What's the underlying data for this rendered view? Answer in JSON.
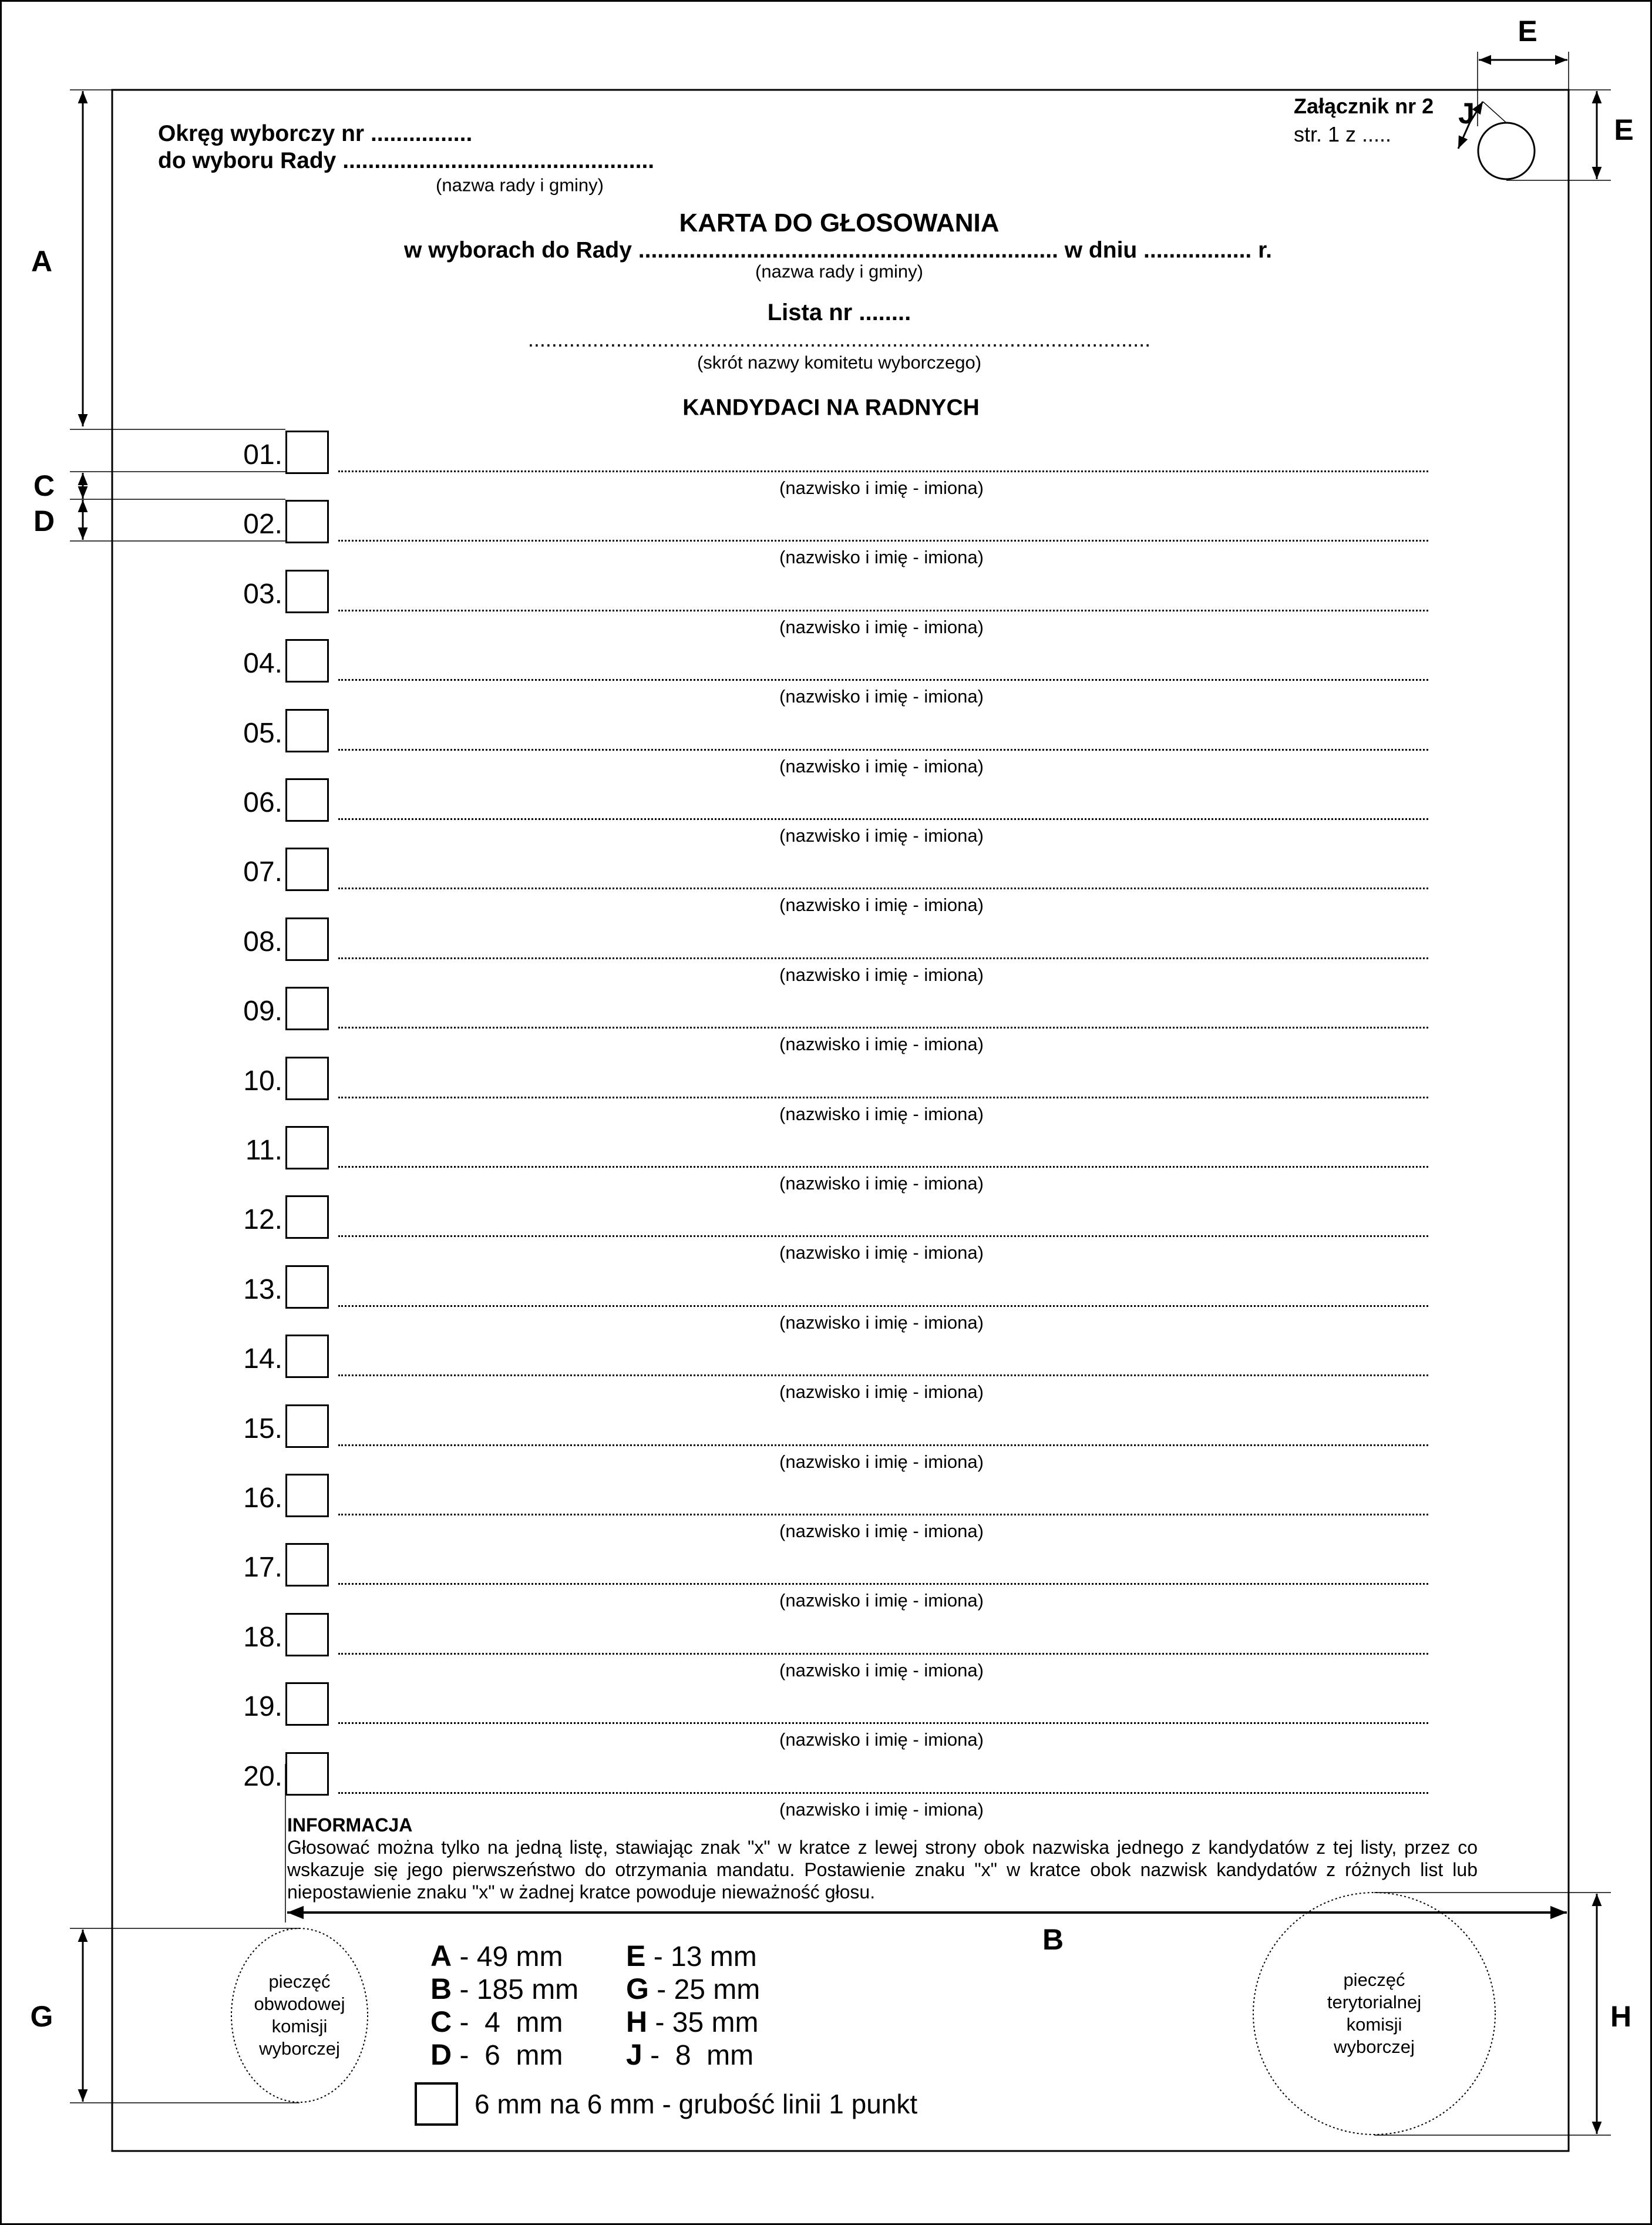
{
  "header": {
    "district": "Okręg wyborczy nr ................",
    "council": "do wyboru Rady .................................................",
    "council_caption": "(nazwa rady i gminy)",
    "attachment": "Załącznik nr 2",
    "page": "str. 1 z ....."
  },
  "title": {
    "main": "KARTA DO GŁOSOWANIA",
    "subtitle": "w wyborach do Rady ..................................................................  w dniu ................. r.",
    "subtitle_caption": "(nazwa rady i gminy)",
    "list": "Lista nr ........",
    "committee_line": "..........................................................................................................",
    "committee_caption": "(skrót nazwy komitetu wyborczego)",
    "candidates_heading": "KANDYDACI NA RADNYCH"
  },
  "candidates": {
    "caption": "(nazwisko i imię - imiona)",
    "numbers": [
      "01.",
      "02.",
      "03.",
      "04.",
      "05.",
      "06.",
      "07.",
      "08.",
      "09.",
      "10.",
      "11.",
      "12.",
      "13.",
      "14.",
      "15.",
      "16.",
      "17.",
      "18.",
      "19.",
      "20."
    ]
  },
  "info": {
    "heading": "INFORMACJA",
    "text": "Głosować można tylko na jedną listę, stawiając znak \"x\" w kratce z lewej strony obok nazwiska  jednego z kandydatów z tej listy, przez co wskazuje się jego pierwszeństwo do otrzymania mandatu. Postawienie znaku \"x\" w kratce obok nazwisk kandydatów z różnych list lub niepostawienie znaku \"x\" w żadnej kratce powoduje nieważność głosu."
  },
  "stamps": {
    "left": [
      "pieczęć",
      "obwodowej",
      "komisji",
      "wyborczej"
    ],
    "right": [
      "pieczęć",
      "terytorialnej",
      "komisji",
      "wyborczej"
    ]
  },
  "dimensions": {
    "labels": {
      "A": "A",
      "B": "B",
      "C": "C",
      "D": "D",
      "E": "E",
      "G": "G",
      "H": "H",
      "J": "J"
    },
    "legend": [
      {
        "key": "A",
        "value": "- 49 mm"
      },
      {
        "key": "B",
        "value": "- 185 mm"
      },
      {
        "key": "C",
        "value": "-  4  mm"
      },
      {
        "key": "D",
        "value": "-  6  mm"
      },
      {
        "key": "E",
        "value": "- 13 mm"
      },
      {
        "key": "G",
        "value": "- 25 mm"
      },
      {
        "key": "H",
        "value": "- 35 mm"
      },
      {
        "key": "J",
        "value": "-  8  mm"
      }
    ],
    "box_note": "6 mm na 6 mm - grubość linii 1 punkt"
  }
}
